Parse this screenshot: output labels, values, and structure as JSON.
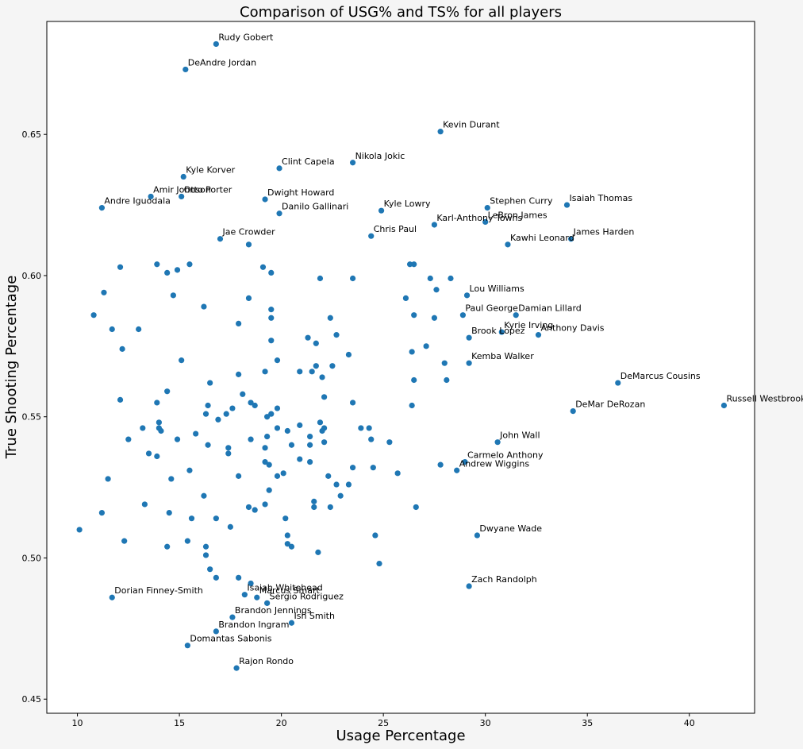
{
  "chart_data": {
    "type": "scatter",
    "title": "Comparison of USG% and TS% for all players",
    "xlabel": "Usage Percentage",
    "ylabel": "True Shooting Percentage",
    "xlim": [
      8.5,
      43.2
    ],
    "ylim": [
      0.445,
      0.69
    ],
    "xticks": [
      "10",
      "15",
      "20",
      "25",
      "30",
      "35",
      "40"
    ],
    "yticks": [
      "0.45",
      "0.50",
      "0.55",
      "0.60",
      "0.65"
    ],
    "point_color": "#1f77b4",
    "labeled_points": [
      {
        "name": "Rudy Gobert",
        "x": 16.8,
        "y": 0.682
      },
      {
        "name": "DeAndre Jordan",
        "x": 15.3,
        "y": 0.673
      },
      {
        "name": "Kevin Durant",
        "x": 27.8,
        "y": 0.651
      },
      {
        "name": "Nikola Jokic",
        "x": 23.5,
        "y": 0.64
      },
      {
        "name": "Clint Capela",
        "x": 19.9,
        "y": 0.638
      },
      {
        "name": "Kyle Korver",
        "x": 15.2,
        "y": 0.635
      },
      {
        "name": "Amir Johnson",
        "x": 13.6,
        "y": 0.628
      },
      {
        "name": "Otto Porter",
        "x": 15.1,
        "y": 0.628
      },
      {
        "name": "Andre Iguodala",
        "x": 11.2,
        "y": 0.624
      },
      {
        "name": "Dwight Howard",
        "x": 19.2,
        "y": 0.627
      },
      {
        "name": "Danilo Gallinari",
        "x": 19.9,
        "y": 0.622
      },
      {
        "name": "Kyle Lowry",
        "x": 24.9,
        "y": 0.623
      },
      {
        "name": "Stephen Curry",
        "x": 30.1,
        "y": 0.624
      },
      {
        "name": "Isaiah Thomas",
        "x": 34.0,
        "y": 0.625
      },
      {
        "name": "Karl-Anthony Towns",
        "x": 27.5,
        "y": 0.618
      },
      {
        "name": "LeBron James",
        "x": 30.0,
        "y": 0.619
      },
      {
        "name": "Chris Paul",
        "x": 24.4,
        "y": 0.614
      },
      {
        "name": "Jae Crowder",
        "x": 17.0,
        "y": 0.613
      },
      {
        "name": "Kawhi Leonard",
        "x": 31.1,
        "y": 0.611
      },
      {
        "name": "James Harden",
        "x": 34.2,
        "y": 0.613
      },
      {
        "name": "Lou Williams",
        "x": 29.1,
        "y": 0.593
      },
      {
        "name": "Paul George",
        "x": 28.9,
        "y": 0.586
      },
      {
        "name": "Damian Lillard",
        "x": 31.5,
        "y": 0.586
      },
      {
        "name": "Kyrie Irving",
        "x": 30.8,
        "y": 0.58
      },
      {
        "name": "Anthony Davis",
        "x": 32.6,
        "y": 0.579
      },
      {
        "name": "Brook Lopez",
        "x": 29.2,
        "y": 0.578
      },
      {
        "name": "Kemba Walker",
        "x": 29.2,
        "y": 0.569
      },
      {
        "name": "DeMarcus Cousins",
        "x": 36.5,
        "y": 0.562
      },
      {
        "name": "Russell Westbrook",
        "x": 41.7,
        "y": 0.554
      },
      {
        "name": "DeMar DeRozan",
        "x": 34.3,
        "y": 0.552
      },
      {
        "name": "John Wall",
        "x": 30.6,
        "y": 0.541
      },
      {
        "name": "Carmelo Anthony",
        "x": 29.0,
        "y": 0.534
      },
      {
        "name": "Andrew Wiggins",
        "x": 28.6,
        "y": 0.531
      },
      {
        "name": "Dwyane Wade",
        "x": 29.6,
        "y": 0.508
      },
      {
        "name": "Zach Randolph",
        "x": 29.2,
        "y": 0.49
      },
      {
        "name": "Dorian Finney-Smith",
        "x": 11.7,
        "y": 0.486
      },
      {
        "name": "Isaiah Whitehead",
        "x": 18.2,
        "y": 0.487
      },
      {
        "name": "Marcus Smart",
        "x": 18.8,
        "y": 0.486
      },
      {
        "name": "Sergio Rodriguez",
        "x": 19.3,
        "y": 0.484
      },
      {
        "name": "Brandon Jennings",
        "x": 17.6,
        "y": 0.479
      },
      {
        "name": "Ish Smith",
        "x": 20.5,
        "y": 0.477
      },
      {
        "name": "Brandon Ingram",
        "x": 16.8,
        "y": 0.474
      },
      {
        "name": "Domantas Sabonis",
        "x": 15.4,
        "y": 0.469
      },
      {
        "name": "Rajon Rondo",
        "x": 17.8,
        "y": 0.461
      }
    ],
    "unlabeled_points": [
      [
        12.1,
        0.603
      ],
      [
        13.9,
        0.604
      ],
      [
        14.4,
        0.601
      ],
      [
        14.9,
        0.602
      ],
      [
        15.5,
        0.604
      ],
      [
        11.3,
        0.594
      ],
      [
        14.7,
        0.593
      ],
      [
        10.8,
        0.586
      ],
      [
        11.7,
        0.581
      ],
      [
        13.0,
        0.581
      ],
      [
        12.2,
        0.574
      ],
      [
        15.1,
        0.57
      ],
      [
        16.2,
        0.589
      ],
      [
        18.4,
        0.611
      ],
      [
        18.4,
        0.592
      ],
      [
        19.1,
        0.603
      ],
      [
        19.5,
        0.601
      ],
      [
        17.9,
        0.583
      ],
      [
        19.5,
        0.588
      ],
      [
        19.5,
        0.585
      ],
      [
        19.5,
        0.577
      ],
      [
        19.8,
        0.57
      ],
      [
        21.9,
        0.599
      ],
      [
        23.5,
        0.599
      ],
      [
        22.4,
        0.585
      ],
      [
        21.3,
        0.578
      ],
      [
        21.7,
        0.576
      ],
      [
        22.7,
        0.579
      ],
      [
        22.5,
        0.568
      ],
      [
        21.7,
        0.568
      ],
      [
        20.9,
        0.566
      ],
      [
        21.5,
        0.566
      ],
      [
        22.0,
        0.564
      ],
      [
        23.3,
        0.572
      ],
      [
        26.3,
        0.604
      ],
      [
        26.5,
        0.604
      ],
      [
        27.3,
        0.599
      ],
      [
        28.3,
        0.599
      ],
      [
        27.6,
        0.595
      ],
      [
        26.1,
        0.592
      ],
      [
        26.5,
        0.586
      ],
      [
        27.5,
        0.585
      ],
      [
        27.1,
        0.575
      ],
      [
        26.4,
        0.573
      ],
      [
        28.0,
        0.569
      ],
      [
        26.5,
        0.563
      ],
      [
        28.1,
        0.563
      ],
      [
        26.4,
        0.554
      ],
      [
        12.1,
        0.556
      ],
      [
        14.4,
        0.559
      ],
      [
        13.9,
        0.555
      ],
      [
        14.0,
        0.548
      ],
      [
        14.1,
        0.545
      ],
      [
        14.0,
        0.546
      ],
      [
        13.2,
        0.546
      ],
      [
        12.5,
        0.542
      ],
      [
        14.9,
        0.542
      ],
      [
        15.8,
        0.544
      ],
      [
        16.5,
        0.562
      ],
      [
        16.4,
        0.554
      ],
      [
        16.3,
        0.551
      ],
      [
        16.9,
        0.549
      ],
      [
        17.3,
        0.551
      ],
      [
        17.6,
        0.553
      ],
      [
        17.9,
        0.565
      ],
      [
        18.1,
        0.558
      ],
      [
        18.5,
        0.555
      ],
      [
        18.7,
        0.554
      ],
      [
        19.2,
        0.566
      ],
      [
        19.3,
        0.55
      ],
      [
        19.5,
        0.551
      ],
      [
        19.8,
        0.553
      ],
      [
        19.8,
        0.546
      ],
      [
        20.3,
        0.545
      ],
      [
        18.5,
        0.542
      ],
      [
        19.3,
        0.543
      ],
      [
        20.5,
        0.54
      ],
      [
        19.2,
        0.539
      ],
      [
        16.4,
        0.54
      ],
      [
        17.4,
        0.539
      ],
      [
        17.4,
        0.537
      ],
      [
        13.5,
        0.537
      ],
      [
        13.9,
        0.536
      ],
      [
        15.5,
        0.531
      ],
      [
        14.6,
        0.528
      ],
      [
        11.5,
        0.528
      ],
      [
        13.3,
        0.519
      ],
      [
        11.2,
        0.516
      ],
      [
        14.5,
        0.516
      ],
      [
        16.2,
        0.522
      ],
      [
        15.6,
        0.514
      ],
      [
        16.8,
        0.514
      ],
      [
        17.5,
        0.511
      ],
      [
        10.1,
        0.51
      ],
      [
        12.3,
        0.506
      ],
      [
        14.4,
        0.504
      ],
      [
        15.4,
        0.506
      ],
      [
        16.3,
        0.504
      ],
      [
        16.3,
        0.501
      ],
      [
        16.5,
        0.496
      ],
      [
        16.8,
        0.493
      ],
      [
        17.9,
        0.529
      ],
      [
        19.2,
        0.534
      ],
      [
        19.4,
        0.533
      ],
      [
        19.8,
        0.529
      ],
      [
        20.1,
        0.53
      ],
      [
        19.4,
        0.524
      ],
      [
        19.2,
        0.519
      ],
      [
        18.4,
        0.518
      ],
      [
        18.7,
        0.517
      ],
      [
        20.2,
        0.514
      ],
      [
        20.3,
        0.508
      ],
      [
        20.3,
        0.505
      ],
      [
        20.5,
        0.504
      ],
      [
        21.8,
        0.502
      ],
      [
        17.9,
        0.493
      ],
      [
        18.5,
        0.491
      ],
      [
        20.9,
        0.535
      ],
      [
        21.4,
        0.534
      ],
      [
        21.4,
        0.54
      ],
      [
        21.4,
        0.543
      ],
      [
        20.9,
        0.547
      ],
      [
        21.9,
        0.548
      ],
      [
        22.1,
        0.546
      ],
      [
        22.0,
        0.545
      ],
      [
        22.1,
        0.541
      ],
      [
        22.1,
        0.557
      ],
      [
        23.5,
        0.555
      ],
      [
        23.9,
        0.546
      ],
      [
        24.3,
        0.546
      ],
      [
        24.4,
        0.542
      ],
      [
        25.3,
        0.541
      ],
      [
        23.5,
        0.532
      ],
      [
        24.5,
        0.532
      ],
      [
        22.3,
        0.529
      ],
      [
        22.7,
        0.526
      ],
      [
        23.3,
        0.526
      ],
      [
        22.9,
        0.522
      ],
      [
        21.6,
        0.52
      ],
      [
        21.6,
        0.518
      ],
      [
        22.4,
        0.518
      ],
      [
        25.7,
        0.53
      ],
      [
        26.6,
        0.518
      ],
      [
        24.6,
        0.508
      ],
      [
        24.8,
        0.498
      ],
      [
        27.8,
        0.533
      ]
    ]
  }
}
